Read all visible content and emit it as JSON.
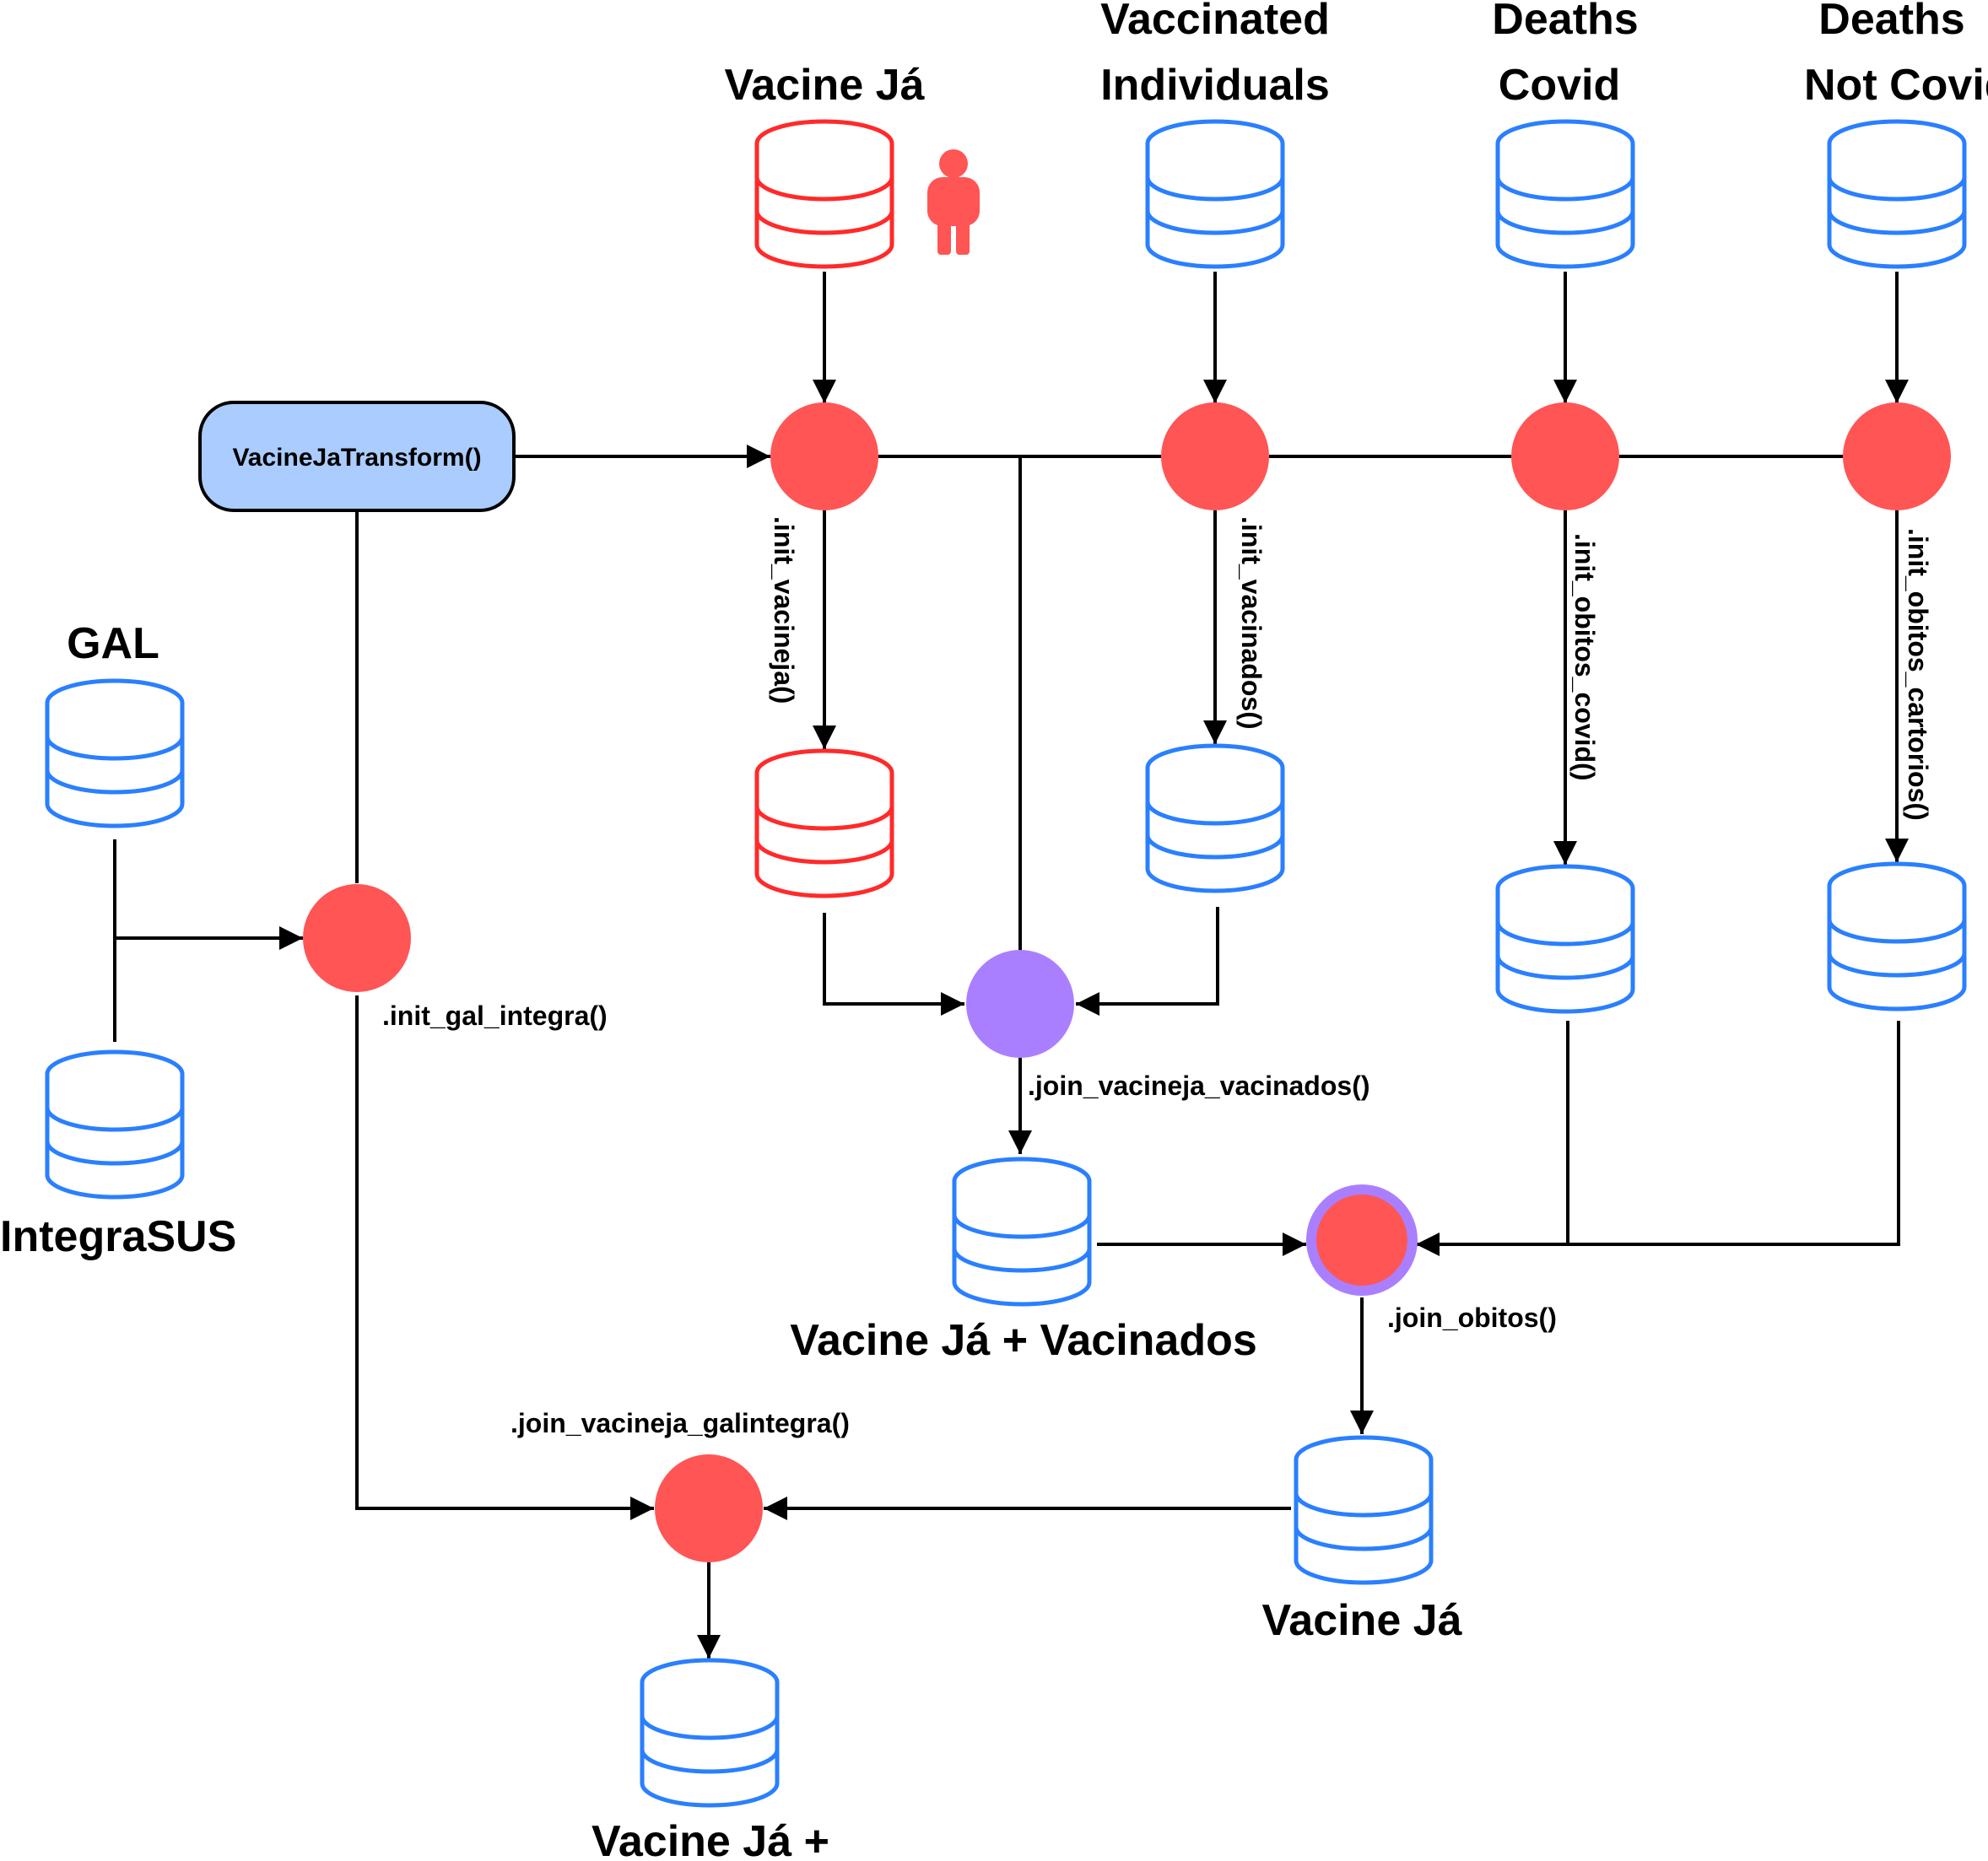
{
  "colors": {
    "db_blue": "#2a7fff",
    "db_red": "#ff2a2a",
    "node_red": "#ff5555",
    "node_purple": "#aa7fff",
    "box_fill": "#aaccff"
  },
  "icons": {
    "database": "database-icon",
    "person": "person-icon"
  },
  "sources": {
    "vacine_ja": "Vacine Já",
    "vaccinated_l1": "Vaccinated",
    "vaccinated_l2": "Individuals",
    "deaths_covid_l1": "Deaths",
    "deaths_covid_l2": "Covid",
    "deaths_not_covid_l1": "Deaths",
    "deaths_not_covid_l2": "Not Covid",
    "gal": "GAL",
    "integrasus": "IntegraSUS"
  },
  "transform_box": "VacineJaTransform()",
  "functions": {
    "init_vacineja": ".init_vacineja()",
    "init_vacinados": ".init_vacinados()",
    "init_obitos_covid": ".init_obitos_covid()",
    "init_obitos_cartorios": ".init_obitos_cartorios()",
    "init_gal_integra": ".init_gal_integra()",
    "join_vacineja_vacinados": ".join_vacineja_vacinados()",
    "join_obitos": ".join_obitos()",
    "join_vacineja_galintegra": ".join_vacineja_galintegra()"
  },
  "outputs": {
    "vacineja_vacinados": "Vacine Já + Vacinados",
    "vacineja": "Vacine Já",
    "vacineja_plus": "Vacine Já +"
  }
}
